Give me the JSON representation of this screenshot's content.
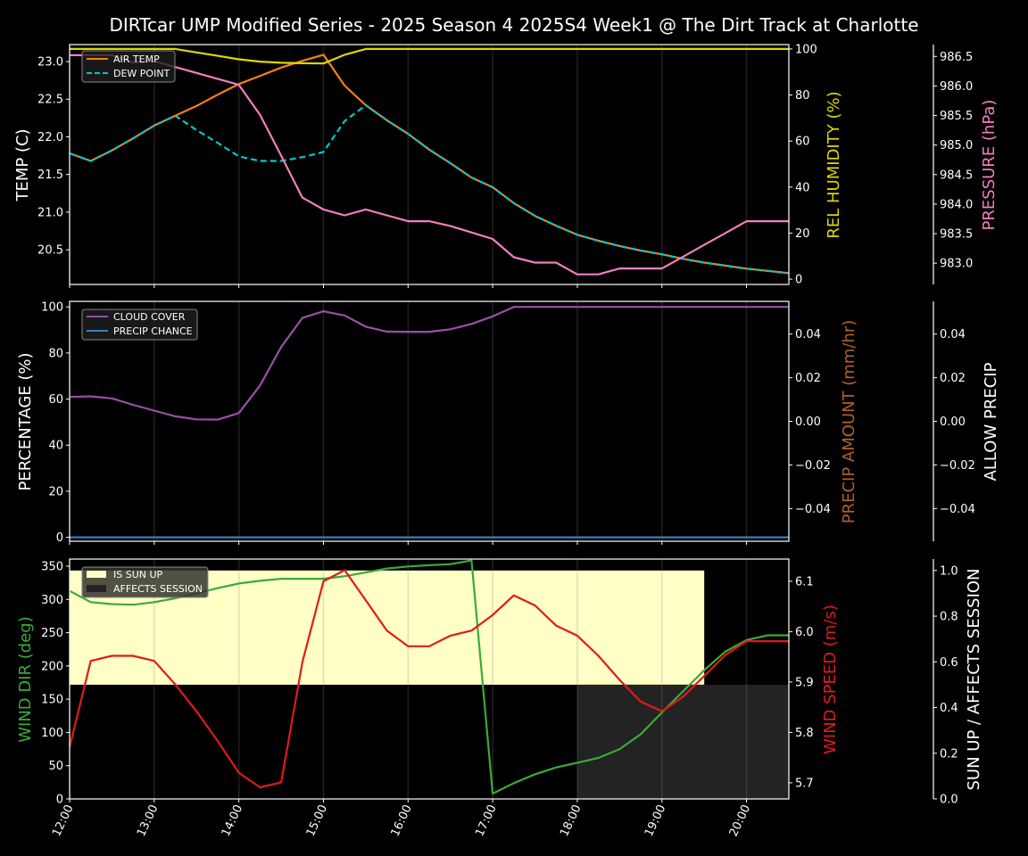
{
  "title": "DIRTcar UMP Modified Series - 2025 Season 4 2025S4 Week1 @ The Dirt Track at Charlotte",
  "chart_data": {
    "type": "line",
    "x": [
      "12:00",
      "12:15",
      "12:30",
      "12:45",
      "13:00",
      "13:15",
      "13:30",
      "13:45",
      "14:00",
      "14:15",
      "14:30",
      "14:45",
      "15:00",
      "15:15",
      "15:30",
      "15:45",
      "16:00",
      "16:15",
      "16:30",
      "16:45",
      "17:00",
      "17:15",
      "17:30",
      "17:45",
      "18:00",
      "18:15",
      "18:30",
      "18:45",
      "19:00",
      "19:15",
      "19:30",
      "19:45",
      "20:00",
      "20:15",
      "20:30"
    ],
    "xlim": [
      "12:00",
      "20:30"
    ],
    "xticks": [
      "12:00",
      "13:00",
      "14:00",
      "15:00",
      "16:00",
      "17:00",
      "18:00",
      "19:00",
      "20:00"
    ],
    "grid": "vertical",
    "colors": {
      "air_temp": "#ff7f0e",
      "dew_point": "#00c8c8",
      "rel_humidity": "#dada00",
      "pressure": "#f47ebd",
      "cloud_cover": "#9b4fa8",
      "precip_chance": "#3a7fc0",
      "precip_amount": "#b0602a",
      "wind_dir": "#3aaa3a",
      "wind_speed": "#e01a1a",
      "sun_up": "#ffffc6",
      "affects_session": "#232323"
    },
    "panels": [
      {
        "axes": {
          "temp": {
            "label": "TEMP (C)",
            "range": [
              20.04,
              23.225
            ],
            "ticks": [
              20.5,
              21.0,
              21.5,
              22.0,
              22.5,
              23.0
            ],
            "tick_labels": [
              "20.5",
              "21.0",
              "21.5",
              "22.0",
              "22.5",
              "23.0"
            ]
          },
          "rh": {
            "label": "REL HUMIDITY (%)",
            "range": [
              -2.3,
              101.9
            ],
            "ticks": [
              0,
              20,
              40,
              60,
              80,
              100
            ],
            "tick_labels": [
              "0",
              "20",
              "40",
              "60",
              "80",
              "100"
            ]
          },
          "pressure": {
            "label": "PRESSURE (hPa)",
            "range": [
              982.64,
              986.7
            ],
            "ticks": [
              983.0,
              983.5,
              984.0,
              984.5,
              985.0,
              985.5,
              986.0,
              986.5
            ],
            "tick_labels": [
              "983.0",
              "983.5",
              "984.0",
              "984.5",
              "985.0",
              "985.5",
              "986.0",
              "986.5"
            ]
          }
        },
        "legend": [
          "AIR TEMP",
          "DEW POINT"
        ],
        "series": [
          {
            "name": "AIR TEMP",
            "axis": "temp",
            "color_key": "air_temp",
            "values": [
              21.78,
              21.68,
              21.82,
              21.98,
              22.15,
              22.28,
              22.41,
              22.56,
              22.7,
              22.81,
              22.92,
              23.01,
              23.09,
              22.68,
              22.42,
              22.22,
              22.04,
              21.83,
              21.65,
              21.46,
              21.33,
              21.12,
              20.95,
              20.82,
              20.7,
              20.62,
              20.55,
              20.49,
              20.44,
              20.38,
              20.33,
              20.29,
              20.25,
              20.22,
              20.19
            ]
          },
          {
            "name": "DEW POINT",
            "axis": "temp",
            "color_key": "dew_point",
            "dashed": true,
            "values": [
              21.78,
              21.68,
              21.82,
              21.98,
              22.15,
              22.28,
              22.09,
              21.92,
              21.74,
              21.68,
              21.68,
              21.73,
              21.8,
              22.21,
              22.42,
              22.22,
              22.04,
              21.83,
              21.65,
              21.46,
              21.33,
              21.12,
              20.95,
              20.82,
              20.7,
              20.62,
              20.55,
              20.49,
              20.44,
              20.38,
              20.33,
              20.29,
              20.25,
              20.22,
              20.19
            ]
          },
          {
            "name": "REL HUMIDITY",
            "axis": "rh",
            "color_key": "rel_humidity",
            "values": [
              100,
              100,
              100,
              100,
              100,
              100,
              98.5,
              97,
              95.5,
              94.5,
              94,
              93.8,
              93.7,
              97.5,
              100,
              100,
              100,
              100,
              100,
              100,
              100,
              100,
              100,
              100,
              100,
              100,
              100,
              100,
              100,
              100,
              100,
              100,
              100,
              100,
              100
            ]
          },
          {
            "name": "PRESSURE",
            "axis": "pressure",
            "color_key": "pressure",
            "values": [
              986.52,
              986.52,
              986.52,
              986.4,
              986.42,
              986.32,
              986.22,
              986.12,
              986.02,
              985.51,
              984.82,
              984.11,
              983.91,
              983.81,
              983.91,
              983.81,
              983.71,
              983.71,
              983.63,
              983.52,
              983.41,
              983.1,
              983.01,
              983.01,
              982.81,
              982.81,
              982.91,
              982.91,
              982.91,
              983.11,
              983.31,
              983.51,
              983.71,
              983.71,
              983.71
            ]
          }
        ]
      },
      {
        "axes": {
          "pct": {
            "label": "PERCENTAGE (%)",
            "range": [
              -1.7,
              102.4
            ],
            "ticks": [
              0,
              20,
              40,
              60,
              80,
              100
            ],
            "tick_labels": [
              "0",
              "20",
              "40",
              "60",
              "80",
              "100"
            ]
          },
          "precip_amount": {
            "label": "PRECIP AMOUNT (mm/hr)",
            "range": [
              -0.055,
              0.055
            ],
            "ticks": [
              -0.04,
              -0.02,
              0,
              0.02,
              0.04
            ],
            "tick_labels": [
              "−0.04",
              "−0.02",
              "0.00",
              "0.02",
              "0.04"
            ]
          },
          "allow_precip": {
            "label": "ALLOW PRECIP",
            "range": [
              -0.055,
              0.055
            ],
            "ticks": [
              -0.04,
              -0.02,
              0,
              0.02,
              0.04
            ],
            "tick_labels": [
              "−0.04",
              "−0.02",
              "0.00",
              "0.02",
              "0.04"
            ]
          }
        },
        "legend": [
          "CLOUD COVER",
          "PRECIP CHANCE"
        ],
        "series": [
          {
            "name": "CLOUD COVER",
            "axis": "pct",
            "color_key": "cloud_cover",
            "values": [
              60.9,
              61.2,
              60.3,
              57.5,
              55,
              52.5,
              51.2,
              51.1,
              53.9,
              65.9,
              82.6,
              95.2,
              98.1,
              96.3,
              91.4,
              89.3,
              89.2,
              89.2,
              90.3,
              92.6,
              95.9,
              100,
              100,
              100,
              100,
              100,
              100,
              100,
              100,
              100,
              100,
              100,
              100,
              100,
              100
            ]
          },
          {
            "name": "PRECIP CHANCE",
            "axis": "pct",
            "color_key": "precip_chance",
            "values": [
              0,
              0,
              0,
              0,
              0,
              0,
              0,
              0,
              0,
              0,
              0,
              0,
              0,
              0,
              0,
              0,
              0,
              0,
              0,
              0,
              0,
              0,
              0,
              0,
              0,
              0,
              0,
              0,
              0,
              0,
              0,
              0,
              0,
              0,
              0
            ]
          }
        ]
      },
      {
        "axes": {
          "wind_dir": {
            "label": "WIND DIR (deg)",
            "range": [
              0,
              360.7
            ],
            "ticks": [
              0,
              50,
              100,
              150,
              200,
              250,
              300,
              350
            ],
            "tick_labels": [
              "0",
              "50",
              "100",
              "150",
              "200",
              "250",
              "300",
              "350"
            ]
          },
          "wind_speed": {
            "label": "WIND SPEED (m/s)",
            "range": [
              5.668,
              6.144
            ],
            "ticks": [
              5.7,
              5.8,
              5.9,
              6.0,
              6.1
            ],
            "tick_labels": [
              "5.7",
              "5.8",
              "5.9",
              "6.0",
              "6.1"
            ]
          },
          "sun": {
            "label": "SUN UP / AFFECTS SESSION",
            "range": [
              0,
              1.05
            ],
            "ticks": [
              0,
              0.2,
              0.4,
              0.6,
              0.8,
              1.0
            ],
            "tick_labels": [
              "0.0",
              "0.2",
              "0.4",
              "0.6",
              "0.8",
              "1.0"
            ]
          }
        },
        "legend": [
          "IS SUN UP",
          "AFFECTS SESSION"
        ],
        "bands": [
          {
            "name": "IS SUN UP",
            "axis": "sun",
            "color_key": "sun_up",
            "start": "12:00",
            "end": "19:30",
            "low": 0.5,
            "high": 1.0
          },
          {
            "name": "AFFECTS SESSION",
            "axis": "sun",
            "color_key": "affects_session",
            "start": "18:00",
            "end": "20:30",
            "low": 0.0,
            "high": 0.5
          }
        ],
        "series": [
          {
            "name": "WIND DIR",
            "axis": "wind_dir",
            "color_key": "wind_dir",
            "values": [
              312.8,
              296,
              293,
              292,
              296,
              301.7,
              309,
              317,
              324,
              328,
              331,
              331,
              331,
              335,
              340.6,
              346.5,
              349.6,
              351.4,
              353,
              358.6,
              8,
              23.7,
              37,
              47.4,
              54.5,
              61.7,
              75,
              97.5,
              130,
              162,
              193.6,
              221.7,
              239,
              246,
              246
            ]
          },
          {
            "name": "WIND SPEED",
            "axis": "wind_speed",
            "color_key": "wind_speed",
            "values": [
              5.771,
              5.942,
              5.952,
              5.952,
              5.942,
              5.895,
              5.842,
              5.783,
              5.72,
              5.691,
              5.701,
              5.939,
              6.1,
              6.122,
              6.062,
              6.002,
              5.971,
              5.971,
              5.992,
              6.002,
              6.033,
              6.072,
              6.052,
              6.012,
              5.992,
              5.952,
              5.904,
              5.861,
              5.842,
              5.871,
              5.912,
              5.954,
              5.981,
              5.981,
              5.981
            ]
          }
        ]
      }
    ]
  }
}
